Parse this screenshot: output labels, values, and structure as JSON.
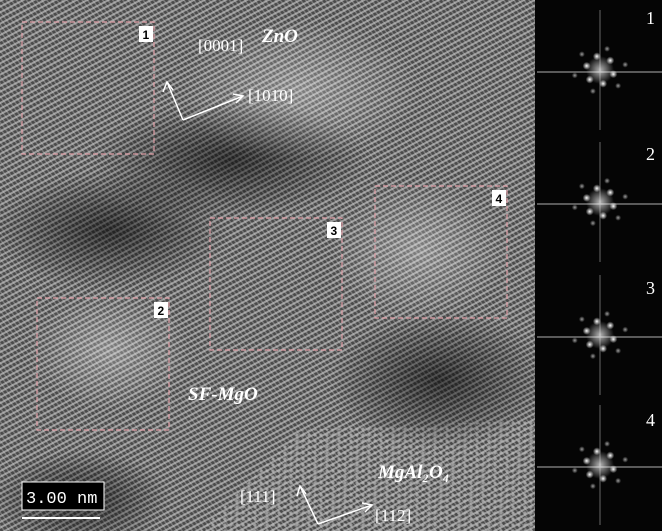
{
  "labels": {
    "zno": "ZnO",
    "zno_c": "[0001]",
    "zno_a": "[101̄0]",
    "sf_mgo": "SF-MgO",
    "spinel": "MgAl₂O₄",
    "spinel_a": "[111]",
    "spinel_b": "[112̄]"
  },
  "regions": [
    "1",
    "2",
    "3",
    "4"
  ],
  "fft_labels": [
    "1",
    "2",
    "3",
    "4"
  ],
  "scale_bar": "3.00 nm"
}
